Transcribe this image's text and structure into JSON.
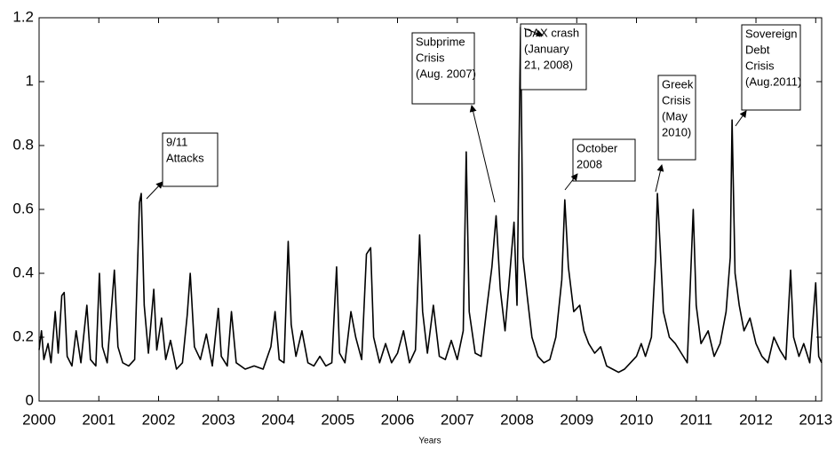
{
  "chart_data": {
    "type": "line",
    "xlabel": "Years",
    "x": [
      2000.0,
      2000.04,
      2000.08,
      2000.15,
      2000.2,
      2000.27,
      2000.32,
      2000.38,
      2000.42,
      2000.47,
      2000.55,
      2000.62,
      2000.7,
      2000.8,
      2000.86,
      2000.95,
      2001.01,
      2001.06,
      2001.14,
      2001.22,
      2001.26,
      2001.32,
      2001.4,
      2001.5,
      2001.6,
      2001.68,
      2001.71,
      2001.76,
      2001.83,
      2001.92,
      2001.97,
      2002.05,
      2002.12,
      2002.2,
      2002.3,
      2002.4,
      2002.48,
      2002.53,
      2002.6,
      2002.7,
      2002.8,
      2002.9,
      2003.0,
      2003.05,
      2003.15,
      2003.22,
      2003.3,
      2003.45,
      2003.6,
      2003.75,
      2003.88,
      2003.95,
      2004.02,
      2004.1,
      2004.17,
      2004.22,
      2004.3,
      2004.4,
      2004.5,
      2004.6,
      2004.7,
      2004.8,
      2004.9,
      2004.98,
      2005.03,
      2005.12,
      2005.22,
      2005.3,
      2005.4,
      2005.48,
      2005.55,
      2005.6,
      2005.7,
      2005.8,
      2005.9,
      2006.0,
      2006.1,
      2006.2,
      2006.3,
      2006.37,
      2006.42,
      2006.5,
      2006.6,
      2006.7,
      2006.8,
      2006.9,
      2007.0,
      2007.1,
      2007.15,
      2007.2,
      2007.3,
      2007.4,
      2007.5,
      2007.58,
      2007.65,
      2007.72,
      2007.8,
      2007.88,
      2007.95,
      2008.0,
      2008.06,
      2008.1,
      2008.17,
      2008.25,
      2008.35,
      2008.45,
      2008.55,
      2008.65,
      2008.75,
      2008.8,
      2008.86,
      2008.95,
      2009.05,
      2009.12,
      2009.2,
      2009.3,
      2009.4,
      2009.5,
      2009.6,
      2009.7,
      2009.8,
      2009.9,
      2010.0,
      2010.08,
      2010.15,
      2010.25,
      2010.32,
      2010.35,
      2010.4,
      2010.45,
      2010.55,
      2010.65,
      2010.75,
      2010.85,
      2010.95,
      2011.0,
      2011.08,
      2011.2,
      2011.3,
      2011.4,
      2011.5,
      2011.57,
      2011.6,
      2011.65,
      2011.72,
      2011.8,
      2011.9,
      2012.0,
      2012.1,
      2012.2,
      2012.3,
      2012.4,
      2012.5,
      2012.58,
      2012.63,
      2012.72,
      2012.8,
      2012.9,
      2013.0,
      2013.05,
      2013.1
    ],
    "values": [
      0.16,
      0.22,
      0.13,
      0.18,
      0.12,
      0.28,
      0.15,
      0.33,
      0.34,
      0.14,
      0.11,
      0.22,
      0.12,
      0.3,
      0.13,
      0.11,
      0.4,
      0.17,
      0.12,
      0.31,
      0.41,
      0.17,
      0.12,
      0.11,
      0.13,
      0.62,
      0.65,
      0.3,
      0.15,
      0.35,
      0.16,
      0.26,
      0.13,
      0.19,
      0.1,
      0.12,
      0.27,
      0.4,
      0.17,
      0.13,
      0.21,
      0.11,
      0.29,
      0.14,
      0.11,
      0.28,
      0.12,
      0.1,
      0.11,
      0.1,
      0.17,
      0.28,
      0.13,
      0.12,
      0.5,
      0.24,
      0.14,
      0.22,
      0.12,
      0.11,
      0.14,
      0.11,
      0.12,
      0.42,
      0.15,
      0.12,
      0.28,
      0.2,
      0.13,
      0.46,
      0.48,
      0.2,
      0.12,
      0.18,
      0.12,
      0.15,
      0.22,
      0.12,
      0.16,
      0.52,
      0.28,
      0.15,
      0.3,
      0.14,
      0.13,
      0.19,
      0.13,
      0.22,
      0.78,
      0.28,
      0.15,
      0.14,
      0.3,
      0.42,
      0.58,
      0.35,
      0.22,
      0.4,
      0.56,
      0.3,
      1.17,
      0.45,
      0.33,
      0.2,
      0.14,
      0.12,
      0.13,
      0.2,
      0.38,
      0.63,
      0.42,
      0.28,
      0.3,
      0.22,
      0.18,
      0.15,
      0.17,
      0.11,
      0.1,
      0.09,
      0.1,
      0.12,
      0.14,
      0.18,
      0.14,
      0.2,
      0.45,
      0.65,
      0.47,
      0.28,
      0.2,
      0.18,
      0.15,
      0.12,
      0.6,
      0.3,
      0.18,
      0.22,
      0.14,
      0.18,
      0.28,
      0.45,
      0.88,
      0.4,
      0.3,
      0.22,
      0.26,
      0.18,
      0.14,
      0.12,
      0.2,
      0.16,
      0.13,
      0.41,
      0.2,
      0.14,
      0.18,
      0.12,
      0.37,
      0.14,
      0.12
    ],
    "color": "#000000",
    "xlim": [
      2000,
      2013.1
    ],
    "xticks": [
      2000,
      2001,
      2002,
      2003,
      2004,
      2005,
      2006,
      2007,
      2008,
      2009,
      2010,
      2011,
      2012,
      2013
    ],
    "ylim": [
      0,
      1.2
    ],
    "yticks": [
      0,
      0.2,
      0.4,
      0.6,
      0.8,
      1,
      1.2
    ],
    "annotations": [
      {
        "lines": [
          "9/11",
          "Attacks"
        ]
      },
      {
        "lines": [
          "Subprime",
          "Crisis",
          "(Aug. 2007)"
        ]
      },
      {
        "lines": [
          "DAX crash",
          "(January",
          "21, 2008)"
        ]
      },
      {
        "lines": [
          "October",
          "2008"
        ]
      },
      {
        "lines": [
          "Greek",
          "Crisis",
          "(May",
          "2010)"
        ]
      },
      {
        "lines": [
          "Sovereign",
          "Debt",
          "Crisis",
          "(Aug.2011)"
        ]
      }
    ]
  }
}
